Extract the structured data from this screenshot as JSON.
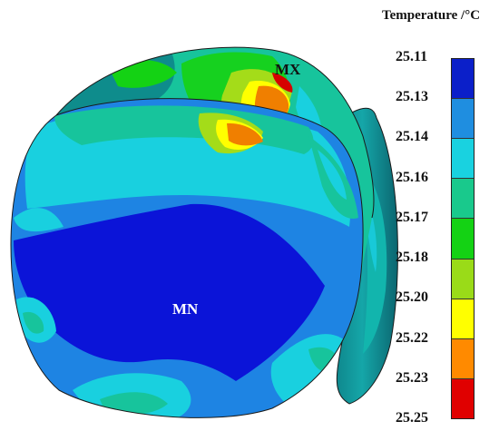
{
  "legend": {
    "title": "Temperature /°C",
    "ticks": [
      "25.11",
      "25.13",
      "25.14",
      "25.16",
      "25.17",
      "25.18",
      "25.20",
      "25.22",
      "25.23",
      "25.25"
    ],
    "colors": [
      "#0b1fc9",
      "#1f8ee0",
      "#19d2e0",
      "#19c98c",
      "#14d214",
      "#9adb18",
      "#ffff00",
      "#ff8a00",
      "#e00000"
    ]
  },
  "labels": {
    "max": "MX",
    "min": "MN"
  },
  "palette": {
    "outline": "#1a1a1a",
    "side_dark": "#0e7f86",
    "deep_blue": "#0b14d8",
    "mid_blue": "#1e84e3",
    "cyan": "#19d0df",
    "green": "#17c49c",
    "bright_green": "#16d11f",
    "yellow_green": "#a4dc19",
    "yellow": "#ffff00",
    "orange": "#f07f00",
    "red": "#d60000"
  }
}
